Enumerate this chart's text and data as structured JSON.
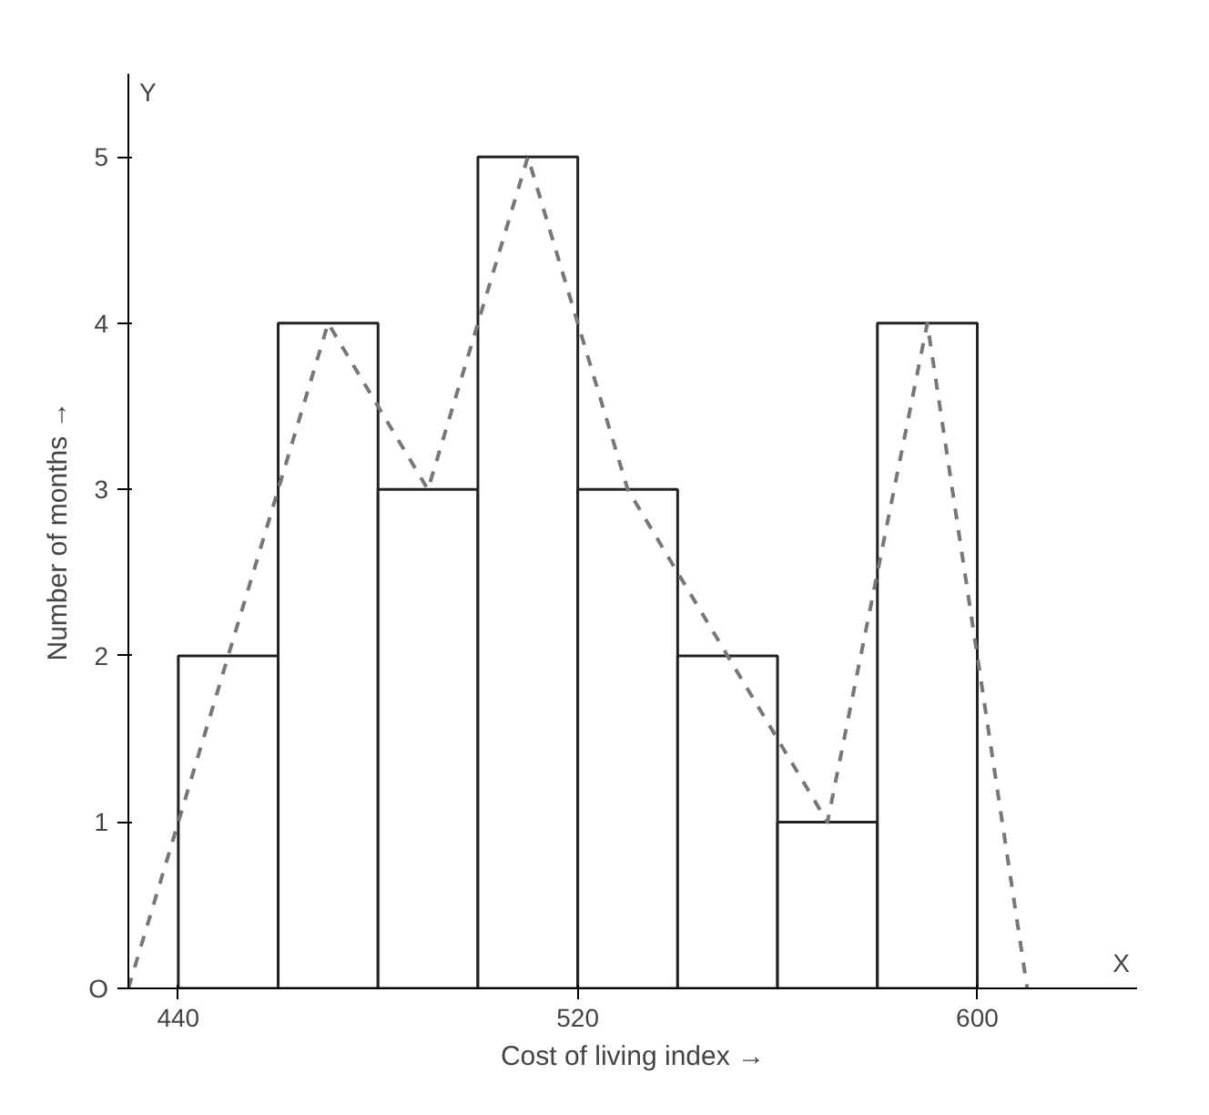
{
  "chart_data": {
    "type": "histogram",
    "xlabel": "Cost of living index →",
    "ylabel": "Number of months →",
    "bins": [
      440,
      460,
      480,
      500,
      520,
      540,
      560,
      580,
      600
    ],
    "values": [
      2,
      4,
      3,
      5,
      3,
      2,
      1,
      4
    ],
    "color": "#ffffff",
    "series": [
      {
        "type": "line",
        "x": [
          430,
          450,
          470,
          490,
          510,
          530,
          550,
          570,
          590,
          610
        ],
        "values": [
          0,
          2,
          4,
          3,
          5,
          3,
          2,
          1,
          4,
          0
        ],
        "color": "#777777",
        "line_style": "dashed"
      }
    ],
    "xlim": [
      430,
      632
    ],
    "ylim": [
      0,
      5.5
    ],
    "xticks": [
      440,
      520,
      600
    ],
    "yticks": [
      {
        "value": 0,
        "label": "O"
      },
      1,
      2,
      3,
      4,
      5
    ],
    "annotations": [
      "X",
      "Y"
    ],
    "grid": false
  }
}
